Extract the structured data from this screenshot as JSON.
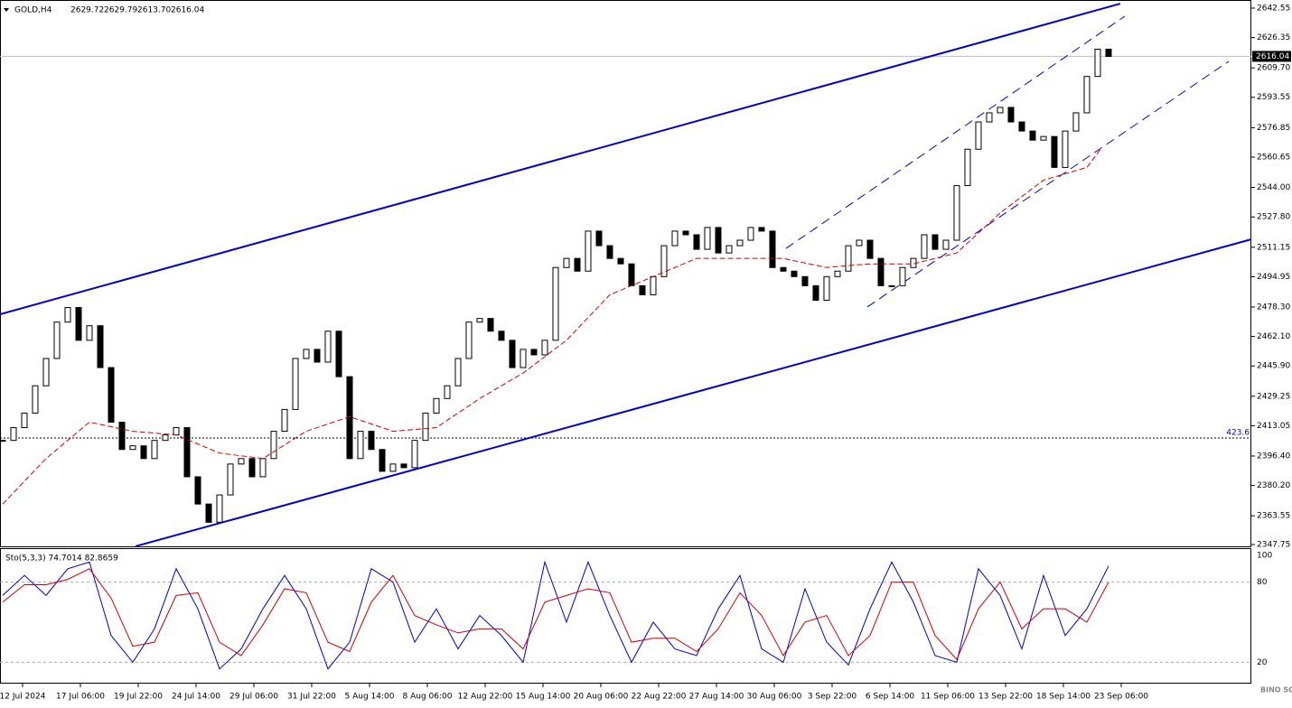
{
  "chart_data": {
    "type": "candlestick",
    "title": "GOLD,H4",
    "header_values": [
      "2629.72",
      "2629.79",
      "2613.70",
      "2616.04"
    ],
    "current_price": {
      "value": 2616.04,
      "label": "2616.04"
    },
    "level_line": {
      "price": 2406.3,
      "label": "423.6"
    },
    "xlim": [
      -0.25,
      115.17
    ],
    "ylim": [
      2347.75,
      2642.55
    ],
    "yticks": [
      2642.55,
      {
        "value": 2626.35,
        "label": "2626.35"
      },
      {
        "value": 2609.7,
        "label": "2609.70"
      },
      2593.55,
      2576.85,
      2560.65,
      {
        "value": 2544,
        "label": "2544.00"
      },
      {
        "value": 2527.8,
        "label": "2527.80"
      },
      2511.15,
      2494.95,
      {
        "value": 2478.3,
        "label": "2478.30"
      },
      {
        "value": 2462.1,
        "label": "2462.10"
      },
      {
        "value": 2445.9,
        "label": "2445.90"
      },
      2429.25,
      2413.05,
      {
        "value": 2396.4,
        "label": "2396.40"
      },
      {
        "value": 2380.2,
        "label": "2380.20"
      },
      2363.55,
      2347.75
    ],
    "x_labels": [
      "12 Jul 2024",
      "17 Jul 06:00",
      "19 Jul 22:00",
      "24 Jul 14:00",
      "29 Jul 06:00",
      "31 Jul 22:00",
      "5 Aug 14:00",
      "8 Aug 06:00",
      "12 Aug 22:00",
      "15 Aug 14:00",
      "20 Aug 06:00",
      "22 Aug 22:00",
      "27 Aug 14:00",
      "30 Aug 06:00",
      "3 Sep 22:00",
      "6 Sep 14:00",
      "11 Sep 06:00",
      "13 Sep 22:00",
      "18 Sep 14:00",
      "23 Sep 06:00"
    ],
    "close": [
      2405,
      2412,
      2420,
      2435,
      2450,
      2470,
      2478,
      2460,
      2468,
      2445,
      2415,
      2400,
      2402,
      2395,
      2405,
      2408,
      2412,
      2385,
      2370,
      2360,
      2375,
      2392,
      2395,
      2385,
      2395,
      2410,
      2422,
      2450,
      2455,
      2448,
      2465,
      2440,
      2395,
      2410,
      2400,
      2388,
      2392,
      2390,
      2405,
      2420,
      2428,
      2435,
      2450,
      2470,
      2472,
      2465,
      2460,
      2445,
      2455,
      2452,
      2460,
      2500,
      2505,
      2498,
      2520,
      2512,
      2505,
      2502,
      2490,
      2485,
      2495,
      2512,
      2520,
      2518,
      2510,
      2522,
      2508,
      2512,
      2515,
      2522,
      2520,
      2500,
      2498,
      2495,
      2490,
      2482,
      2495,
      2498,
      2512,
      2515,
      2505,
      2490,
      2490,
      2500,
      2505,
      2518,
      2510,
      2515,
      2545,
      2565,
      2580,
      2585,
      2588,
      2580,
      2575,
      2570,
      2572,
      2555,
      2575,
      2585,
      2605,
      2620,
      2616
    ],
    "moving_average": {
      "color": "#cc0000",
      "x": [
        0,
        4,
        8,
        12,
        16,
        20,
        24,
        28,
        32,
        36,
        40,
        44,
        48,
        52,
        56,
        60,
        64,
        68,
        72,
        76,
        80,
        84,
        88,
        92,
        96,
        100,
        101.25
      ],
      "values": [
        2370,
        2395,
        2415,
        2410,
        2408,
        2398,
        2395,
        2410,
        2418,
        2410,
        2412,
        2428,
        2442,
        2460,
        2485,
        2495,
        2505,
        2505,
        2505,
        2500,
        2502,
        2502,
        2508,
        2530,
        2548,
        2555,
        2565
      ]
    },
    "trend_lines": [
      {
        "style": "solid",
        "x": [
          -0.25,
          103.08
        ],
        "y": [
          2474.3,
          2645.0
        ]
      },
      {
        "style": "solid",
        "x": [
          12.25,
          115.17
        ],
        "y": [
          2346.8,
          2515.5
        ]
      },
      {
        "style": "dashed",
        "x": [
          72.25,
          103.5
        ],
        "y": [
          2510.5,
          2638.1
        ]
      },
      {
        "style": "dashed",
        "x": [
          79.75,
          113.08
        ],
        "y": [
          2478.3,
          2613.3
        ]
      }
    ],
    "oscillator": {
      "title": "Sto(5,3,3) 74.7014 82.8659",
      "ylim": [
        4,
        100
      ],
      "yticks": [
        100,
        80,
        20
      ],
      "levels": [
        80,
        20
      ],
      "x": [
        0,
        2,
        4,
        6,
        8,
        10,
        12,
        14,
        16,
        18,
        20,
        22,
        24,
        26,
        28,
        30,
        32,
        34,
        36,
        38,
        40,
        42,
        44,
        46,
        48,
        50,
        52,
        54,
        56,
        58,
        60,
        62,
        64,
        66,
        68,
        70,
        72,
        74,
        76,
        78,
        80,
        82,
        84,
        86,
        88,
        90,
        92,
        94,
        96,
        98,
        100,
        102
      ],
      "series": [
        {
          "color": "#0000cc",
          "values": [
            70,
            85,
            70,
            90,
            95,
            40,
            20,
            45,
            90,
            60,
            15,
            30,
            60,
            85,
            60,
            15,
            35,
            90,
            80,
            35,
            60,
            30,
            55,
            40,
            20,
            95,
            50,
            95,
            55,
            20,
            50,
            30,
            25,
            60,
            85,
            30,
            20,
            75,
            35,
            18,
            60,
            95,
            65,
            25,
            20,
            90,
            70,
            30,
            85,
            40,
            60,
            92
          ]
        },
        {
          "color": "#cc0000",
          "values": [
            65,
            78,
            78,
            82,
            90,
            68,
            32,
            35,
            70,
            72,
            35,
            25,
            48,
            75,
            72,
            35,
            28,
            65,
            85,
            55,
            48,
            42,
            45,
            45,
            30,
            65,
            70,
            75,
            72,
            35,
            38,
            38,
            28,
            45,
            72,
            55,
            25,
            50,
            55,
            25,
            40,
            80,
            80,
            40,
            22,
            60,
            80,
            45,
            60,
            60,
            50,
            80
          ]
        }
      ]
    },
    "watermark": "BINO SOUND"
  }
}
